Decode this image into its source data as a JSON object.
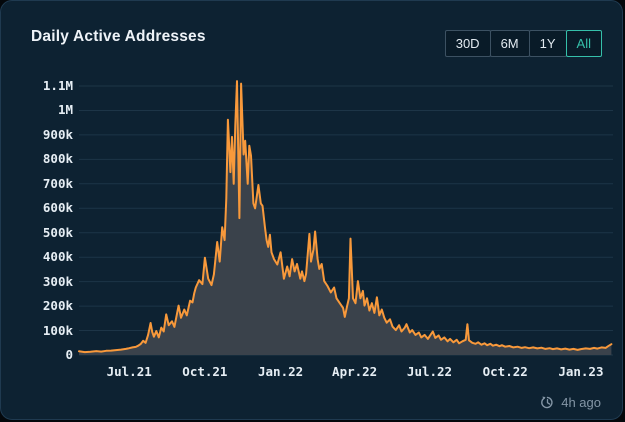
{
  "header": {
    "title": "Daily Active Addresses"
  },
  "time_range": {
    "active_index": 3,
    "buttons": [
      {
        "label": "30D",
        "active": false
      },
      {
        "label": "6M",
        "active": false
      },
      {
        "label": "1Y",
        "active": false
      },
      {
        "label": "All",
        "active": true
      }
    ]
  },
  "footer": {
    "updated": "4h ago",
    "icon": "clock-history-icon"
  },
  "colors": {
    "card_bg": "#0d2232",
    "card_border": "#1f3a50",
    "grid": "#1d3547",
    "axis_text": "#e6eef4",
    "line_orange": "#f8993b",
    "area_fill": "#3a424b",
    "active_teal": "#35c0aa",
    "muted_text": "#8496a6"
  },
  "chart_data": {
    "type": "area",
    "title": "Daily Active Addresses",
    "legend": "none",
    "grid": "horizontal",
    "xlabel": "",
    "ylabel": "",
    "x_axis": {
      "range": [
        "2021-05-01",
        "2023-02-09"
      ],
      "ticks": [
        {
          "label": "Jul.21",
          "date": "2021-07-01"
        },
        {
          "label": "Oct.21",
          "date": "2021-10-01"
        },
        {
          "label": "Jan.22",
          "date": "2022-01-01"
        },
        {
          "label": "Apr.22",
          "date": "2022-04-01"
        },
        {
          "label": "Jul.22",
          "date": "2022-07-01"
        },
        {
          "label": "Oct.22",
          "date": "2022-10-01"
        },
        {
          "label": "Jan.23",
          "date": "2023-01-01"
        }
      ]
    },
    "y_axis": {
      "range": [
        0,
        1120000
      ],
      "ticks": [
        {
          "label": "1.1M",
          "value": 1100000
        },
        {
          "label": "1M",
          "value": 1000000
        },
        {
          "label": "900k",
          "value": 900000
        },
        {
          "label": "800k",
          "value": 800000
        },
        {
          "label": "700k",
          "value": 700000
        },
        {
          "label": "600k",
          "value": 600000
        },
        {
          "label": "500k",
          "value": 500000
        },
        {
          "label": "400k",
          "value": 400000
        },
        {
          "label": "300k",
          "value": 300000
        },
        {
          "label": "200k",
          "value": 200000
        },
        {
          "label": "100k",
          "value": 100000
        },
        {
          "label": "0",
          "value": 0
        }
      ]
    },
    "series": [
      {
        "name": "Daily Active Addresses",
        "unit": "addresses",
        "points": [
          [
            "2021-05-01",
            15000
          ],
          [
            "2021-05-08",
            12000
          ],
          [
            "2021-05-15",
            13000
          ],
          [
            "2021-05-22",
            16000
          ],
          [
            "2021-05-28",
            14000
          ],
          [
            "2021-06-03",
            17000
          ],
          [
            "2021-06-09",
            18000
          ],
          [
            "2021-06-15",
            20000
          ],
          [
            "2021-06-21",
            22000
          ],
          [
            "2021-06-27",
            25000
          ],
          [
            "2021-07-01",
            28000
          ],
          [
            "2021-07-05",
            31000
          ],
          [
            "2021-07-09",
            33000
          ],
          [
            "2021-07-12",
            38000
          ],
          [
            "2021-07-15",
            45000
          ],
          [
            "2021-07-18",
            58000
          ],
          [
            "2021-07-21",
            50000
          ],
          [
            "2021-07-24",
            82000
          ],
          [
            "2021-07-27",
            131000
          ],
          [
            "2021-07-29",
            95000
          ],
          [
            "2021-07-31",
            75000
          ],
          [
            "2021-08-03",
            98000
          ],
          [
            "2021-08-06",
            72000
          ],
          [
            "2021-08-09",
            112000
          ],
          [
            "2021-08-12",
            96000
          ],
          [
            "2021-08-15",
            166000
          ],
          [
            "2021-08-18",
            122000
          ],
          [
            "2021-08-22",
            138000
          ],
          [
            "2021-08-25",
            115000
          ],
          [
            "2021-08-30",
            202000
          ],
          [
            "2021-09-02",
            152000
          ],
          [
            "2021-09-06",
            186000
          ],
          [
            "2021-09-09",
            162000
          ],
          [
            "2021-09-13",
            222000
          ],
          [
            "2021-09-16",
            215000
          ],
          [
            "2021-09-18",
            252000
          ],
          [
            "2021-09-20",
            276000
          ],
          [
            "2021-09-24",
            306000
          ],
          [
            "2021-09-28",
            290000
          ],
          [
            "2021-10-01",
            398000
          ],
          [
            "2021-10-05",
            312000
          ],
          [
            "2021-10-09",
            286000
          ],
          [
            "2021-10-12",
            330000
          ],
          [
            "2021-10-16",
            462000
          ],
          [
            "2021-10-19",
            382000
          ],
          [
            "2021-10-22",
            522000
          ],
          [
            "2021-10-25",
            470000
          ],
          [
            "2021-10-27",
            640000
          ],
          [
            "2021-10-29",
            962000
          ],
          [
            "2021-11-01",
            748000
          ],
          [
            "2021-11-03",
            892000
          ],
          [
            "2021-11-05",
            700000
          ],
          [
            "2021-11-07",
            940000
          ],
          [
            "2021-11-09",
            1120000
          ],
          [
            "2021-11-12",
            560000
          ],
          [
            "2021-11-14",
            1110000
          ],
          [
            "2021-11-17",
            820000
          ],
          [
            "2021-11-19",
            876000
          ],
          [
            "2021-11-22",
            700000
          ],
          [
            "2021-11-24",
            856000
          ],
          [
            "2021-11-26",
            815000
          ],
          [
            "2021-11-29",
            620000
          ],
          [
            "2021-12-01",
            600000
          ],
          [
            "2021-12-05",
            695000
          ],
          [
            "2021-12-08",
            620000
          ],
          [
            "2021-12-10",
            610000
          ],
          [
            "2021-12-13",
            520000
          ],
          [
            "2021-12-15",
            470000
          ],
          [
            "2021-12-17",
            442000
          ],
          [
            "2021-12-19",
            492000
          ],
          [
            "2021-12-21",
            420000
          ],
          [
            "2021-12-24",
            392000
          ],
          [
            "2021-12-28",
            370000
          ],
          [
            "2022-01-01",
            420000
          ],
          [
            "2022-01-05",
            312000
          ],
          [
            "2022-01-09",
            362000
          ],
          [
            "2022-01-12",
            322000
          ],
          [
            "2022-01-15",
            392000
          ],
          [
            "2022-01-18",
            342000
          ],
          [
            "2022-01-21",
            372000
          ],
          [
            "2022-01-25",
            312000
          ],
          [
            "2022-01-27",
            342000
          ],
          [
            "2022-01-30",
            302000
          ],
          [
            "2022-02-01",
            332000
          ],
          [
            "2022-02-05",
            495000
          ],
          [
            "2022-02-07",
            382000
          ],
          [
            "2022-02-10",
            432000
          ],
          [
            "2022-02-12",
            505000
          ],
          [
            "2022-02-15",
            392000
          ],
          [
            "2022-02-17",
            352000
          ],
          [
            "2022-02-20",
            372000
          ],
          [
            "2022-02-23",
            302000
          ],
          [
            "2022-02-27",
            282000
          ],
          [
            "2022-03-03",
            256000
          ],
          [
            "2022-03-07",
            276000
          ],
          [
            "2022-03-10",
            232000
          ],
          [
            "2022-03-14",
            212000
          ],
          [
            "2022-03-18",
            192000
          ],
          [
            "2022-03-20",
            156000
          ],
          [
            "2022-03-23",
            202000
          ],
          [
            "2022-03-25",
            232000
          ],
          [
            "2022-03-27",
            476000
          ],
          [
            "2022-03-30",
            232000
          ],
          [
            "2022-04-02",
            212000
          ],
          [
            "2022-04-05",
            302000
          ],
          [
            "2022-04-08",
            232000
          ],
          [
            "2022-04-11",
            262000
          ],
          [
            "2022-04-13",
            202000
          ],
          [
            "2022-04-16",
            232000
          ],
          [
            "2022-04-19",
            182000
          ],
          [
            "2022-04-22",
            212000
          ],
          [
            "2022-04-25",
            172000
          ],
          [
            "2022-04-28",
            236000
          ],
          [
            "2022-05-01",
            162000
          ],
          [
            "2022-05-04",
            186000
          ],
          [
            "2022-05-07",
            152000
          ],
          [
            "2022-05-10",
            132000
          ],
          [
            "2022-05-14",
            146000
          ],
          [
            "2022-05-17",
            116000
          ],
          [
            "2022-05-21",
            102000
          ],
          [
            "2022-05-25",
            122000
          ],
          [
            "2022-05-28",
            96000
          ],
          [
            "2022-06-01",
            112000
          ],
          [
            "2022-06-03",
            126000
          ],
          [
            "2022-06-07",
            92000
          ],
          [
            "2022-06-10",
            102000
          ],
          [
            "2022-06-14",
            82000
          ],
          [
            "2022-06-18",
            92000
          ],
          [
            "2022-06-21",
            72000
          ],
          [
            "2022-06-25",
            82000
          ],
          [
            "2022-06-29",
            66000
          ],
          [
            "2022-07-01",
            76000
          ],
          [
            "2022-07-05",
            96000
          ],
          [
            "2022-07-08",
            70000
          ],
          [
            "2022-07-12",
            80000
          ],
          [
            "2022-07-15",
            62000
          ],
          [
            "2022-07-19",
            72000
          ],
          [
            "2022-07-23",
            56000
          ],
          [
            "2022-07-26",
            66000
          ],
          [
            "2022-07-30",
            52000
          ],
          [
            "2022-08-03",
            62000
          ],
          [
            "2022-08-06",
            48000
          ],
          [
            "2022-08-10",
            56000
          ],
          [
            "2022-08-14",
            62000
          ],
          [
            "2022-08-16",
            126000
          ],
          [
            "2022-08-18",
            60000
          ],
          [
            "2022-08-22",
            50000
          ],
          [
            "2022-08-26",
            46000
          ],
          [
            "2022-08-29",
            52000
          ],
          [
            "2022-09-02",
            42000
          ],
          [
            "2022-09-06",
            48000
          ],
          [
            "2022-09-09",
            40000
          ],
          [
            "2022-09-13",
            46000
          ],
          [
            "2022-09-16",
            38000
          ],
          [
            "2022-09-20",
            42000
          ],
          [
            "2022-09-24",
            36000
          ],
          [
            "2022-09-27",
            40000
          ],
          [
            "2022-10-01",
            34000
          ],
          [
            "2022-10-06",
            37000
          ],
          [
            "2022-10-11",
            31000
          ],
          [
            "2022-10-16",
            34000
          ],
          [
            "2022-10-21",
            29000
          ],
          [
            "2022-10-25",
            32000
          ],
          [
            "2022-10-30",
            28000
          ],
          [
            "2022-11-04",
            31000
          ],
          [
            "2022-11-09",
            27000
          ],
          [
            "2022-11-14",
            30000
          ],
          [
            "2022-11-19",
            25000
          ],
          [
            "2022-11-24",
            28000
          ],
          [
            "2022-11-28",
            24000
          ],
          [
            "2022-12-03",
            27000
          ],
          [
            "2022-12-08",
            23000
          ],
          [
            "2022-12-13",
            26000
          ],
          [
            "2022-12-18",
            22000
          ],
          [
            "2022-12-23",
            25000
          ],
          [
            "2022-12-28",
            21000
          ],
          [
            "2023-01-01",
            24000
          ],
          [
            "2023-01-07",
            27000
          ],
          [
            "2023-01-12",
            25000
          ],
          [
            "2023-01-17",
            29000
          ],
          [
            "2023-01-21",
            26000
          ],
          [
            "2023-01-26",
            31000
          ],
          [
            "2023-01-31",
            29000
          ],
          [
            "2023-02-03",
            36000
          ],
          [
            "2023-02-07",
            44000
          ]
        ]
      }
    ]
  }
}
